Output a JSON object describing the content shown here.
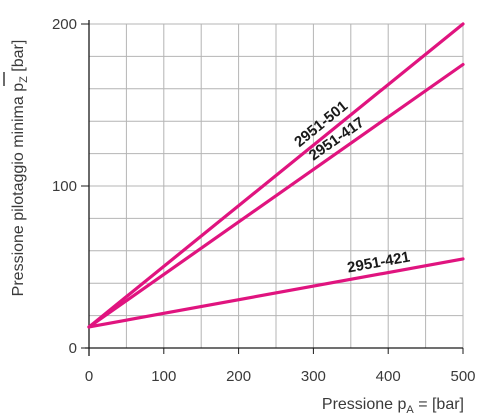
{
  "chart_data": {
    "type": "line",
    "xlabel": "Pressione p_A = [bar]",
    "xlabel_parts": {
      "pre": "Pressione p",
      "sub": "A",
      "post": " = [bar]"
    },
    "ylabel": "Pressione pilotaggio minima p_Z [bar]",
    "ylabel_parts": {
      "pre": "Pressione pilotaggio minima p",
      "sub": "Z",
      "post": " [bar]"
    },
    "xlim": [
      0,
      500
    ],
    "ylim": [
      0,
      200
    ],
    "x_ticks": [
      0,
      100,
      200,
      300,
      400,
      500
    ],
    "y_ticks": [
      0,
      100,
      200
    ],
    "x_minor_step": 50,
    "y_minor_step": 20,
    "grid": true,
    "line_color": "#e0147f",
    "grid_color": "#b4b4b4",
    "series": [
      {
        "name": "2951-501",
        "x": [
          0,
          500
        ],
        "y": [
          13,
          200
        ],
        "label_at": 320
      },
      {
        "name": "2951-417",
        "x": [
          0,
          500
        ],
        "y": [
          13,
          175
        ],
        "label_at": 340
      },
      {
        "name": "2951-421",
        "x": [
          0,
          500
        ],
        "y": [
          13,
          55
        ],
        "label_at": 390
      }
    ]
  }
}
